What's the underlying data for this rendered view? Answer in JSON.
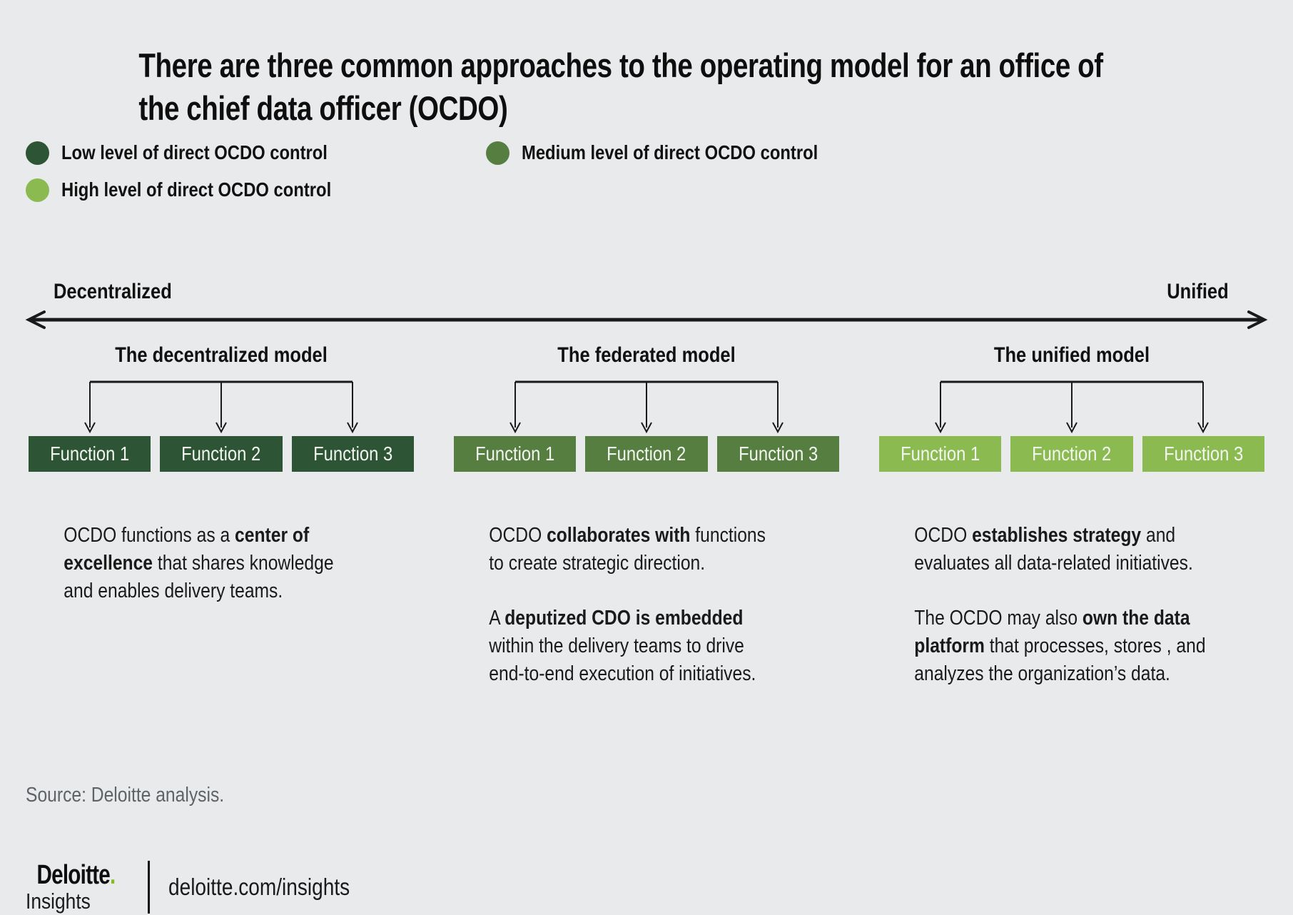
{
  "title": "There are three common approaches to the operating model for an office of\nthe chief data officer (OCDO)",
  "colors": {
    "background": "#e8eaeb",
    "dark_green": "#2c5435",
    "medium_green": "#567e40",
    "light_green": "#8bbb50",
    "brand_dot_green": "#86bc25",
    "line": "#1a1a1a"
  },
  "legend": {
    "items": [
      {
        "label": "Low level of direct OCDO control",
        "color": "#2c5435"
      },
      {
        "label": "Medium level of direct OCDO control",
        "color": "#567e40"
      },
      {
        "label": "High level of direct OCDO control",
        "color": "#8bbb50"
      }
    ]
  },
  "axis": {
    "left_label": "Decentralized",
    "right_label": "Unified"
  },
  "models": [
    {
      "name": "The decentralized model",
      "control_level": "low",
      "color": "#2c5435",
      "functions": [
        "Function 1",
        "Function 2",
        "Function 3"
      ],
      "paragraphs": [
        [
          {
            "t": "OCDO functions as a ",
            "b": false
          },
          {
            "t": "center of\nexcellence",
            "b": true
          },
          {
            "t": " that shares knowledge\nand enables delivery teams.",
            "b": false
          }
        ]
      ]
    },
    {
      "name": "The federated model",
      "control_level": "medium",
      "color": "#567e40",
      "functions": [
        "Function 1",
        "Function 2",
        "Function 3"
      ],
      "paragraphs": [
        [
          {
            "t": "OCDO ",
            "b": false
          },
          {
            "t": "collaborates with",
            "b": true
          },
          {
            "t": " functions\nto create strategic direction.",
            "b": false
          }
        ],
        [
          {
            "t": "A ",
            "b": false
          },
          {
            "t": "deputized CDO is embedded",
            "b": true
          },
          {
            "t": "\nwithin the delivery teams to drive\nend-to-end execution of initiatives.",
            "b": false
          }
        ]
      ]
    },
    {
      "name": "The unified model",
      "control_level": "high",
      "color": "#8bbb50",
      "functions": [
        "Function 1",
        "Function 2",
        "Function 3"
      ],
      "paragraphs": [
        [
          {
            "t": "OCDO ",
            "b": false
          },
          {
            "t": "establishes strategy",
            "b": true
          },
          {
            "t": " and\nevaluates all data-related initiatives.",
            "b": false
          }
        ],
        [
          {
            "t": "The OCDO may also ",
            "b": false
          },
          {
            "t": "own the data\nplatform",
            "b": true
          },
          {
            "t": " that processes, stores , and\nanalyzes the organization’s data.",
            "b": false
          }
        ]
      ]
    }
  ],
  "source": "Source: Deloitte analysis.",
  "footer": {
    "brand": "Deloitte",
    "brand_dot": ".",
    "brand_sub": "Insights",
    "url": "deloitte.com/insights"
  }
}
